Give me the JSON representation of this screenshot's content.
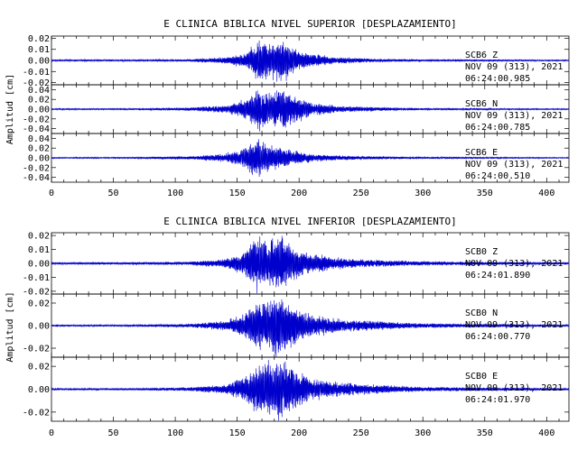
{
  "chart_data": [
    {
      "type": "line",
      "title": "E CLINICA BIBLICA NIVEL SUPERIOR [DESPLAZAMIENTO]",
      "ylabel": "Amplitud [cm]",
      "xlabel": "",
      "xlim": [
        0,
        418
      ],
      "xticks": [
        "0",
        "50",
        "100",
        "150",
        "200",
        "250",
        "300",
        "350",
        "400"
      ],
      "grid": false,
      "series_color": "#0000cc",
      "traces": [
        {
          "station": "SCB6",
          "component": "Z",
          "date": "NOV 09 (313), 2021",
          "time": "06:24:00.985",
          "ylim": [
            -0.022,
            0.022
          ],
          "yticks": [
            "0.02",
            "0.01",
            "0.00",
            "-0.01",
            "-0.02"
          ],
          "envelope": [
            [
              0,
              0.0008
            ],
            [
              60,
              0.0008
            ],
            [
              110,
              0.001
            ],
            [
              140,
              0.003
            ],
            [
              155,
              0.006
            ],
            [
              162,
              0.012
            ],
            [
              168,
              0.02
            ],
            [
              175,
              0.015
            ],
            [
              185,
              0.02
            ],
            [
              195,
              0.012
            ],
            [
              210,
              0.006
            ],
            [
              230,
              0.003
            ],
            [
              260,
              0.0015
            ],
            [
              300,
              0.001
            ],
            [
              418,
              0.0006
            ]
          ],
          "seed": 11
        },
        {
          "station": "SCB6",
          "component": "N",
          "date": "NOV 09 (313), 2021",
          "time": "06:24:00.785",
          "ylim": [
            -0.05,
            0.05
          ],
          "yticks": [
            "0.04",
            "0.02",
            "0.00",
            "-0.02",
            "-0.04"
          ],
          "envelope": [
            [
              0,
              0.0015
            ],
            [
              60,
              0.0015
            ],
            [
              110,
              0.003
            ],
            [
              140,
              0.008
            ],
            [
              155,
              0.018
            ],
            [
              162,
              0.03
            ],
            [
              168,
              0.045
            ],
            [
              175,
              0.03
            ],
            [
              185,
              0.042
            ],
            [
              195,
              0.03
            ],
            [
              210,
              0.014
            ],
            [
              230,
              0.007
            ],
            [
              260,
              0.004
            ],
            [
              300,
              0.002
            ],
            [
              418,
              0.0012
            ]
          ],
          "seed": 23
        },
        {
          "station": "SCB6",
          "component": "E",
          "date": "NOV 09 (313), 2021",
          "time": "06:24:00.510",
          "ylim": [
            -0.05,
            0.05
          ],
          "yticks": [
            "0.04",
            "0.02",
            "0.00",
            "-0.02",
            "-0.04"
          ],
          "envelope": [
            [
              0,
              0.0012
            ],
            [
              60,
              0.0015
            ],
            [
              110,
              0.003
            ],
            [
              140,
              0.008
            ],
            [
              155,
              0.02
            ],
            [
              162,
              0.035
            ],
            [
              168,
              0.04
            ],
            [
              175,
              0.025
            ],
            [
              185,
              0.02
            ],
            [
              195,
              0.014
            ],
            [
              210,
              0.008
            ],
            [
              230,
              0.005
            ],
            [
              260,
              0.003
            ],
            [
              300,
              0.002
            ],
            [
              418,
              0.001
            ]
          ],
          "seed": 37
        }
      ]
    },
    {
      "type": "line",
      "title": "E CLINICA BIBLICA NIVEL INFERIOR [DESPLAZAMIENTO]",
      "ylabel": "Amplitud [cm]",
      "xlabel": "",
      "xlim": [
        0,
        418
      ],
      "xticks": [
        "0",
        "50",
        "100",
        "150",
        "200",
        "250",
        "300",
        "350",
        "400"
      ],
      "grid": false,
      "series_color": "#0000cc",
      "traces": [
        {
          "station": "SCB0",
          "component": "Z",
          "date": "NOV 09 (313), 2021",
          "time": "06:24:01.890",
          "ylim": [
            -0.022,
            0.022
          ],
          "yticks": [
            "0.02",
            "0.01",
            "0.00",
            "-0.01",
            "-0.02"
          ],
          "envelope": [
            [
              0,
              0.0008
            ],
            [
              60,
              0.0008
            ],
            [
              110,
              0.0012
            ],
            [
              140,
              0.003
            ],
            [
              155,
              0.008
            ],
            [
              165,
              0.02
            ],
            [
              175,
              0.015
            ],
            [
              185,
              0.02
            ],
            [
              195,
              0.013
            ],
            [
              210,
              0.007
            ],
            [
              230,
              0.004
            ],
            [
              260,
              0.0025
            ],
            [
              300,
              0.0015
            ],
            [
              418,
              0.0008
            ]
          ],
          "seed": 51
        },
        {
          "station": "SCB0",
          "component": "N",
          "date": "NOV 09 (313), 2021",
          "time": "06:24:00.770",
          "ylim": [
            -0.028,
            0.028
          ],
          "yticks": [
            "0.02",
            "0.00",
            "-0.02"
          ],
          "envelope": [
            [
              0,
              0.0008
            ],
            [
              60,
              0.0009
            ],
            [
              110,
              0.0015
            ],
            [
              140,
              0.004
            ],
            [
              155,
              0.01
            ],
            [
              165,
              0.02
            ],
            [
              175,
              0.022
            ],
            [
              185,
              0.026
            ],
            [
              195,
              0.018
            ],
            [
              210,
              0.01
            ],
            [
              230,
              0.006
            ],
            [
              260,
              0.004
            ],
            [
              300,
              0.002
            ],
            [
              418,
              0.0009
            ]
          ],
          "seed": 67
        },
        {
          "station": "SCB0",
          "component": "E",
          "date": "NOV 09 (313), 2021",
          "time": "06:24:01.970",
          "ylim": [
            -0.028,
            0.028
          ],
          "yticks": [
            "0.02",
            "0.00",
            "-0.02"
          ],
          "envelope": [
            [
              0,
              0.0008
            ],
            [
              60,
              0.0009
            ],
            [
              110,
              0.0015
            ],
            [
              140,
              0.004
            ],
            [
              155,
              0.01
            ],
            [
              165,
              0.02
            ],
            [
              175,
              0.024
            ],
            [
              185,
              0.026
            ],
            [
              195,
              0.02
            ],
            [
              210,
              0.01
            ],
            [
              230,
              0.006
            ],
            [
              260,
              0.004
            ],
            [
              300,
              0.002
            ],
            [
              418,
              0.0009
            ]
          ],
          "seed": 83
        }
      ]
    }
  ]
}
